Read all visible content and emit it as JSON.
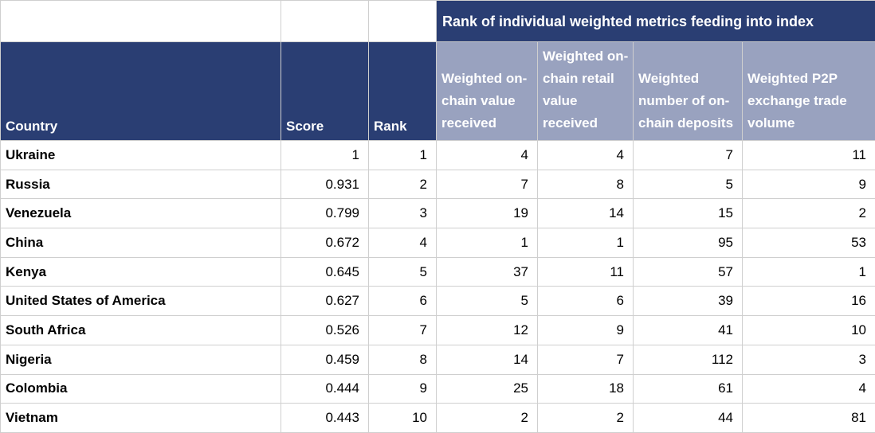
{
  "chart_data": {
    "type": "table",
    "title": "Rank of individual weighted metrics feeding into index",
    "columns": [
      "Country",
      "Score",
      "Rank",
      "Weighted on-chain value received",
      "Weighted on-chain retail value received",
      "Weighted number of on-chain deposits",
      "Weighted P2P exchange trade volume"
    ],
    "rows": [
      [
        "Ukraine",
        "1",
        "1",
        "4",
        "4",
        "7",
        "11"
      ],
      [
        "Russia",
        "0.931",
        "2",
        "7",
        "8",
        "5",
        "9"
      ],
      [
        "Venezuela",
        "0.799",
        "3",
        "19",
        "14",
        "15",
        "2"
      ],
      [
        "China",
        "0.672",
        "4",
        "1",
        "1",
        "95",
        "53"
      ],
      [
        "Kenya",
        "0.645",
        "5",
        "37",
        "11",
        "57",
        "1"
      ],
      [
        "United States of America",
        "0.627",
        "6",
        "5",
        "6",
        "39",
        "16"
      ],
      [
        "South Africa",
        "0.526",
        "7",
        "12",
        "9",
        "41",
        "10"
      ],
      [
        "Nigeria",
        "0.459",
        "8",
        "14",
        "7",
        "112",
        "3"
      ],
      [
        "Colombia",
        "0.444",
        "9",
        "25",
        "18",
        "61",
        "4"
      ],
      [
        "Vietnam",
        "0.443",
        "10",
        "2",
        "2",
        "44",
        "81"
      ]
    ]
  },
  "colors": {
    "header_dark_navy": "#2a3e73",
    "header_light_blue": "#99a2bf",
    "header_text": "#ffffff",
    "body_text": "#000000",
    "grid_border": "#cfcfcf"
  }
}
